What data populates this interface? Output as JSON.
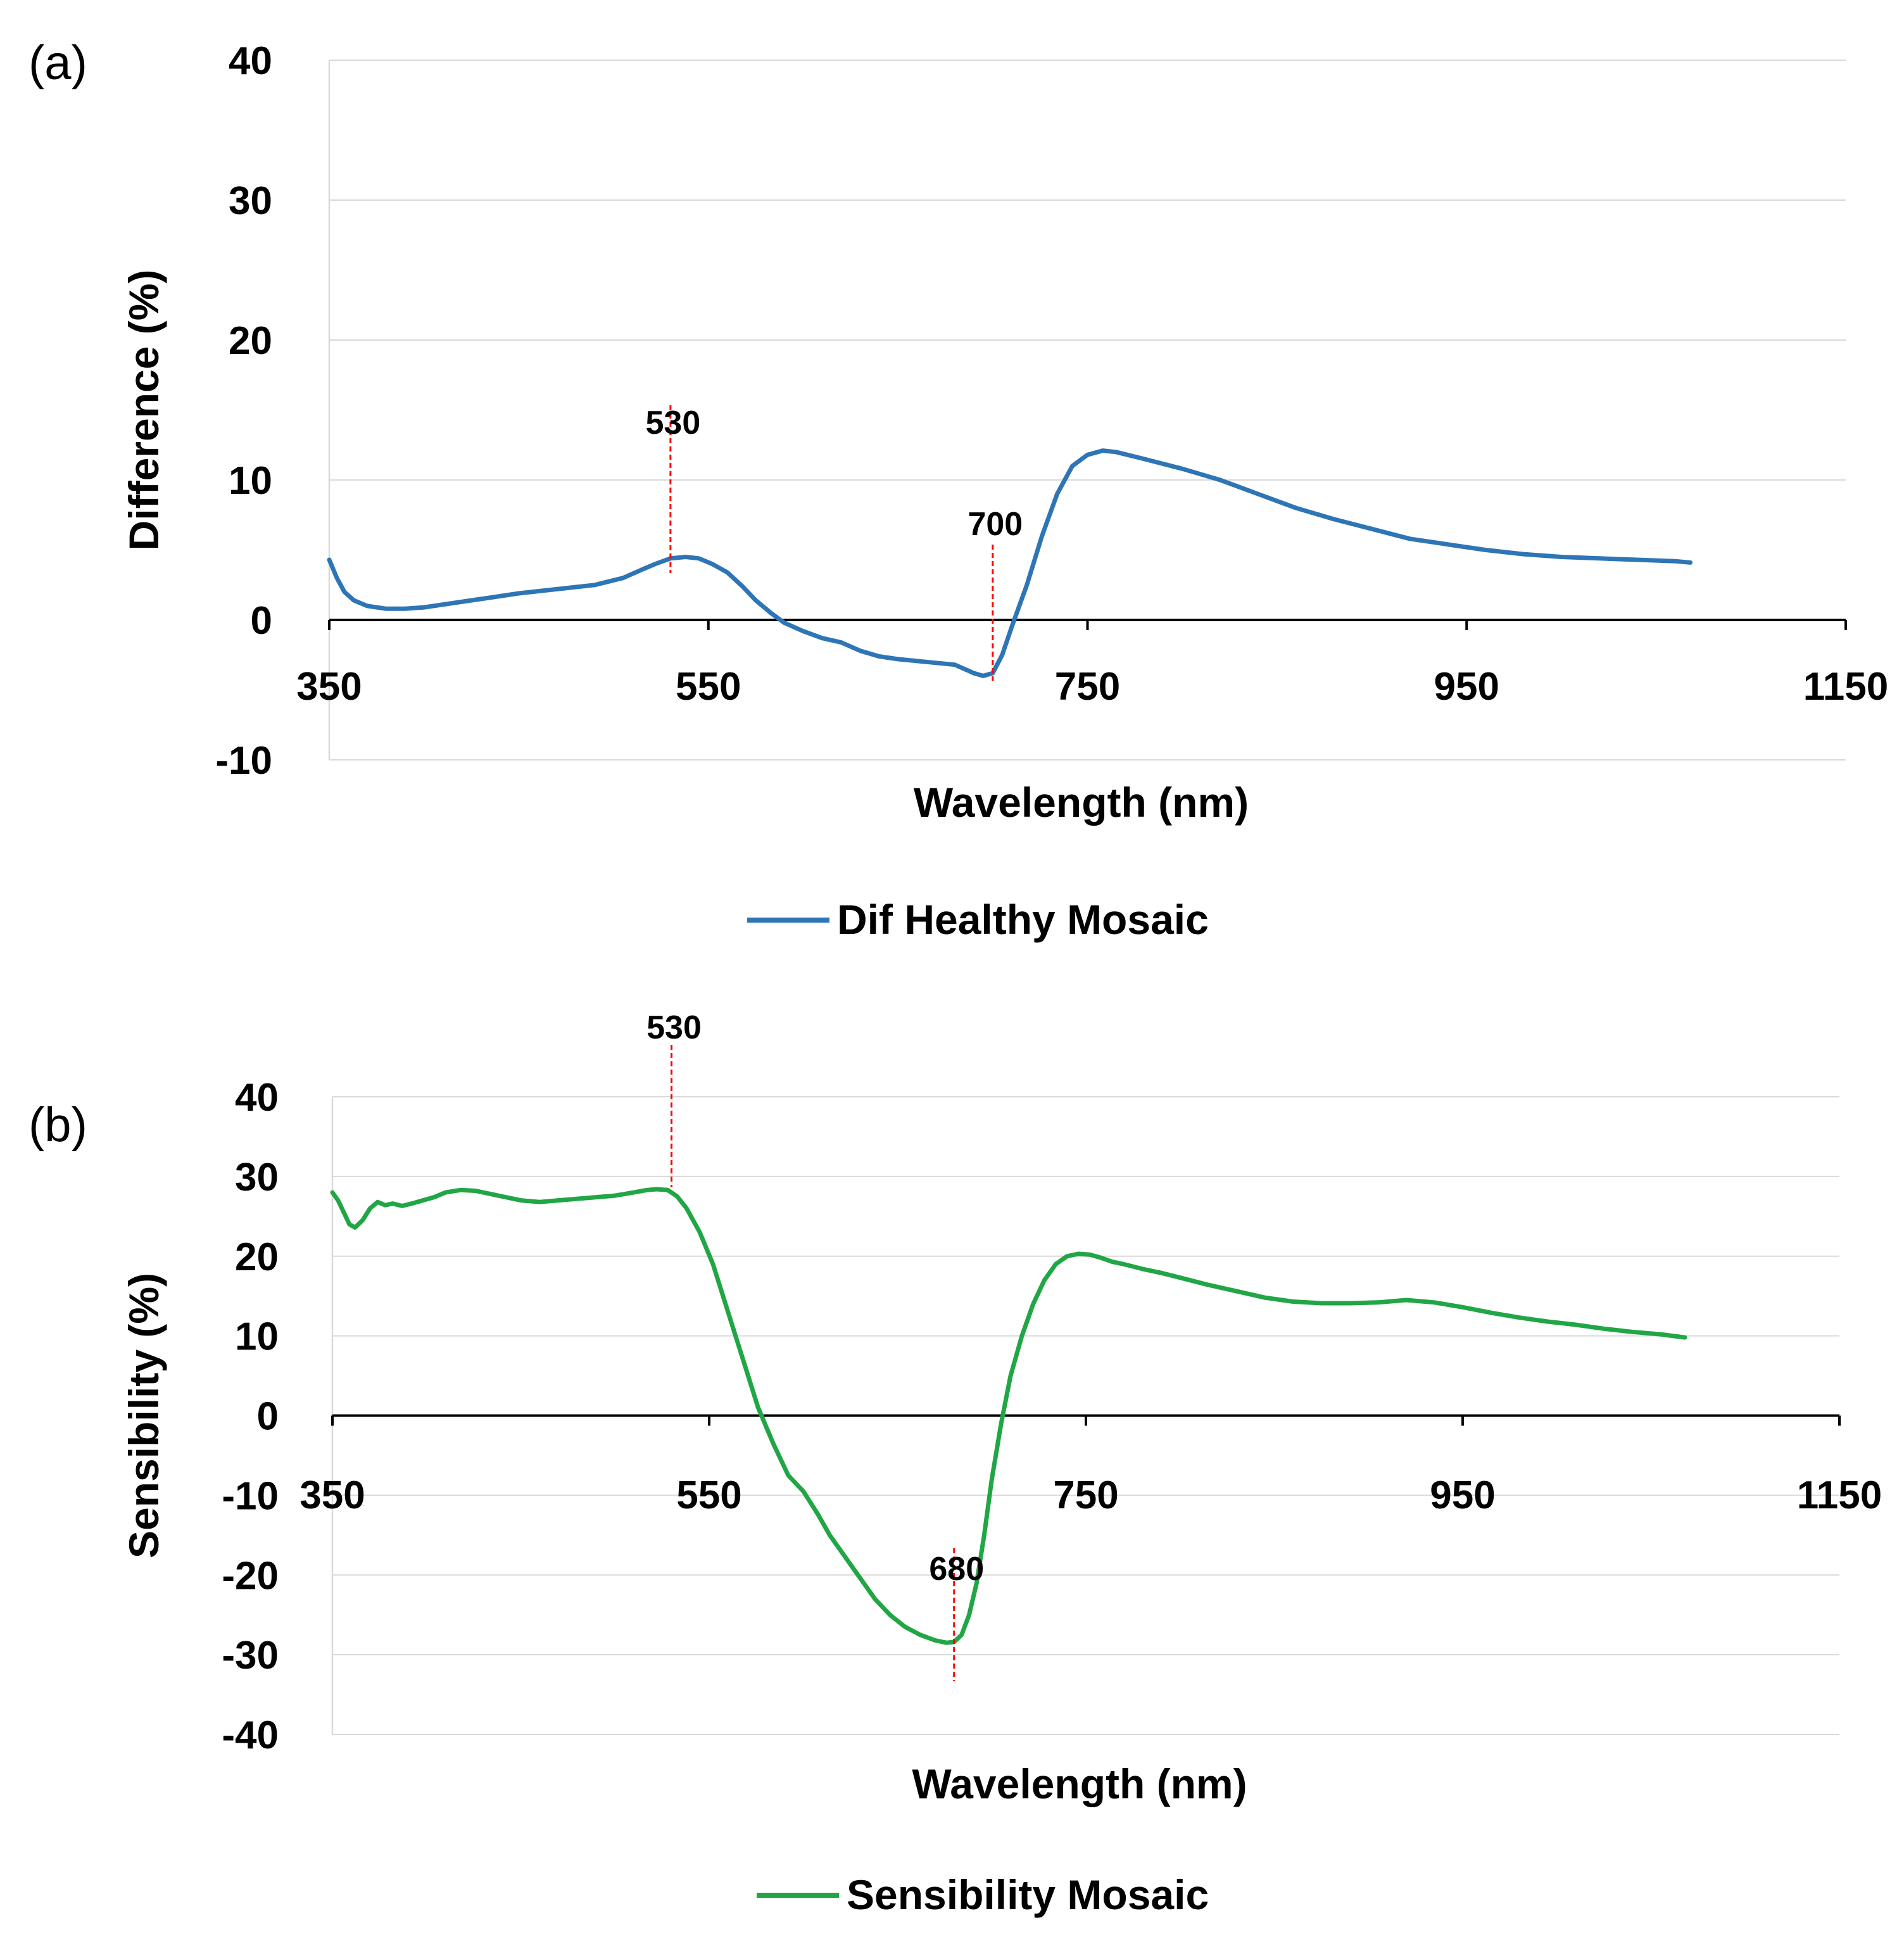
{
  "chart_data": [
    {
      "type": "line",
      "panel_label": "(a)",
      "xlabel": "Wavelength (nm)",
      "ylabel": "Difference (%)",
      "xlim": [
        350,
        1150
      ],
      "ylim": [
        -10,
        40
      ],
      "x_ticks": [
        "350",
        "550",
        "750",
        "950",
        "1150"
      ],
      "y_ticks": [
        "40",
        "30",
        "20",
        "10",
        "0",
        "-10"
      ],
      "grid": true,
      "legend_position": "bottom-center",
      "series": [
        {
          "name": "Dif Healthy Mosaic",
          "color": "#2E75B6",
          "x": [
            350,
            354,
            358,
            363,
            370,
            380,
            390,
            400,
            415,
            430,
            450,
            470,
            490,
            505,
            515,
            522,
            530,
            538,
            545,
            552,
            560,
            568,
            575,
            583,
            590,
            600,
            610,
            620,
            630,
            640,
            650,
            665,
            680,
            690,
            695,
            700,
            705,
            710,
            718,
            726,
            734,
            742,
            750,
            758,
            765,
            780,
            800,
            820,
            840,
            860,
            880,
            900,
            920,
            940,
            960,
            980,
            1000,
            1020,
            1040,
            1060,
            1068
          ],
          "y": [
            4.3,
            3.0,
            2.0,
            1.4,
            1.0,
            0.8,
            0.8,
            0.9,
            1.2,
            1.5,
            1.9,
            2.2,
            2.5,
            3.0,
            3.6,
            4.0,
            4.4,
            4.5,
            4.4,
            4.0,
            3.4,
            2.4,
            1.4,
            0.5,
            -0.2,
            -0.8,
            -1.3,
            -1.6,
            -2.2,
            -2.6,
            -2.8,
            -3.0,
            -3.2,
            -3.8,
            -4.0,
            -3.8,
            -2.5,
            -0.5,
            2.5,
            6.0,
            9.0,
            11.0,
            11.8,
            12.1,
            12.0,
            11.5,
            10.8,
            10.0,
            9.0,
            8.0,
            7.2,
            6.5,
            5.8,
            5.4,
            5.0,
            4.7,
            4.5,
            4.4,
            4.3,
            4.2,
            4.1
          ]
        }
      ],
      "annotations": [
        {
          "label": "530",
          "x": 530
        },
        {
          "label": "700",
          "x": 700
        }
      ]
    },
    {
      "type": "line",
      "panel_label": "(b)",
      "xlabel": "Wavelength (nm)",
      "ylabel": "Sensibility (%)",
      "xlim": [
        350,
        1150
      ],
      "ylim": [
        -40,
        40
      ],
      "x_ticks": [
        "350",
        "550",
        "750",
        "950",
        "1150"
      ],
      "y_ticks": [
        "40",
        "30",
        "20",
        "10",
        "0",
        "-10",
        "-20",
        "-30",
        "-40"
      ],
      "grid": true,
      "legend_position": "bottom-center",
      "series": [
        {
          "name": "Sensibility Mosaic",
          "color": "#21A646",
          "x": [
            350,
            353,
            356,
            359,
            362,
            366,
            370,
            374,
            378,
            382,
            387,
            392,
            398,
            404,
            410,
            418,
            426,
            434,
            442,
            450,
            460,
            470,
            480,
            490,
            500,
            510,
            517,
            522,
            528,
            533,
            538,
            545,
            552,
            560,
            568,
            576,
            584,
            592,
            600,
            608,
            614,
            620,
            626,
            632,
            638,
            646,
            654,
            662,
            670,
            676,
            680,
            684,
            688,
            692,
            696,
            700,
            705,
            710,
            716,
            722,
            728,
            734,
            740,
            746,
            752,
            758,
            764,
            770,
            780,
            790,
            800,
            815,
            830,
            845,
            860,
            875,
            890,
            905,
            920,
            935,
            950,
            965,
            980,
            995,
            1010,
            1025,
            1040,
            1055,
            1068
          ],
          "y": [
            28.0,
            27.0,
            25.5,
            24.0,
            23.6,
            24.5,
            26.0,
            26.8,
            26.4,
            26.6,
            26.3,
            26.6,
            27.0,
            27.4,
            28.0,
            28.3,
            28.2,
            27.8,
            27.4,
            27.0,
            26.8,
            27.0,
            27.2,
            27.4,
            27.6,
            28.0,
            28.3,
            28.4,
            28.3,
            27.5,
            26.0,
            23.0,
            19.0,
            13.0,
            7.0,
            1.0,
            -3.5,
            -7.5,
            -9.5,
            -12.5,
            -15.0,
            -17.0,
            -19.0,
            -21.0,
            -23.0,
            -25.0,
            -26.5,
            -27.5,
            -28.2,
            -28.5,
            -28.4,
            -27.5,
            -25.0,
            -21.0,
            -15.0,
            -8.0,
            -1.0,
            5.0,
            10.0,
            14.0,
            17.0,
            19.0,
            20.0,
            20.3,
            20.2,
            19.8,
            19.3,
            19.0,
            18.4,
            17.9,
            17.3,
            16.4,
            15.6,
            14.8,
            14.3,
            14.1,
            14.1,
            14.2,
            14.5,
            14.2,
            13.6,
            12.9,
            12.3,
            11.8,
            11.4,
            10.9,
            10.5,
            10.2,
            9.8
          ]
        }
      ],
      "annotations": [
        {
          "label": "530",
          "x": 530
        },
        {
          "label": "680",
          "x": 680
        }
      ]
    }
  ]
}
